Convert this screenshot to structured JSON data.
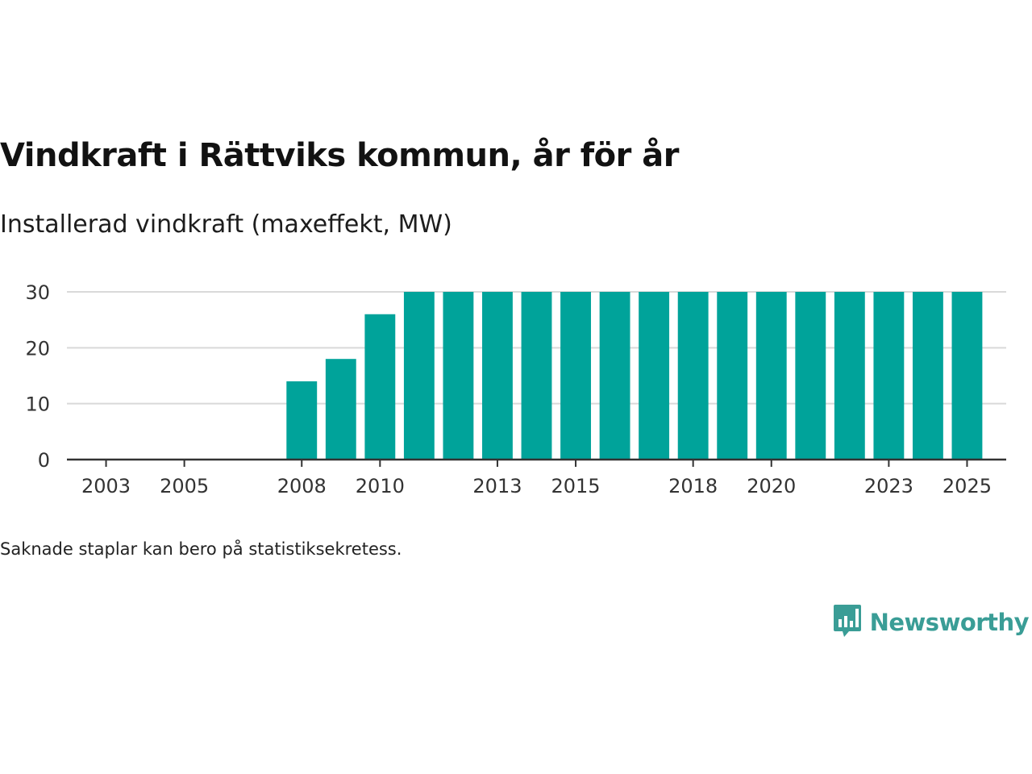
{
  "title": "Vindkraft i Rättviks kommun, år för år",
  "subtitle": "Installerad vindkraft (maxeffekt, MW)",
  "note": "Saknade staplar kan bero på statistiksekretess.",
  "brand": {
    "name": "Newsworthy",
    "logo_icon": "bar-chart-speech-bubble-icon",
    "color": "#3a9d96"
  },
  "colors": {
    "bar": "#00a39a",
    "grid": "#d9d9d9",
    "axis": "#333333"
  },
  "chart_data": {
    "type": "bar",
    "title": "Vindkraft i Rättviks kommun, år för år",
    "ylabel": "Installerad vindkraft (maxeffekt, MW)",
    "xlabel": "",
    "ylim": [
      0,
      30
    ],
    "xlim": [
      2002,
      2026
    ],
    "yticks": [
      0,
      10,
      20,
      30
    ],
    "xticks": [
      "2003",
      "2005",
      "2008",
      "2010",
      "2013",
      "2015",
      "2018",
      "2020",
      "2023",
      "2025"
    ],
    "grid": true,
    "categories": [
      "2008",
      "2009",
      "2010",
      "2011",
      "2012",
      "2013",
      "2014",
      "2015",
      "2016",
      "2017",
      "2018",
      "2019",
      "2020",
      "2021",
      "2022",
      "2023",
      "2024",
      "2025"
    ],
    "values": [
      14,
      18,
      26,
      30,
      30,
      30,
      30,
      30,
      30,
      30,
      30,
      30,
      30,
      30,
      30,
      30,
      30,
      30
    ]
  }
}
